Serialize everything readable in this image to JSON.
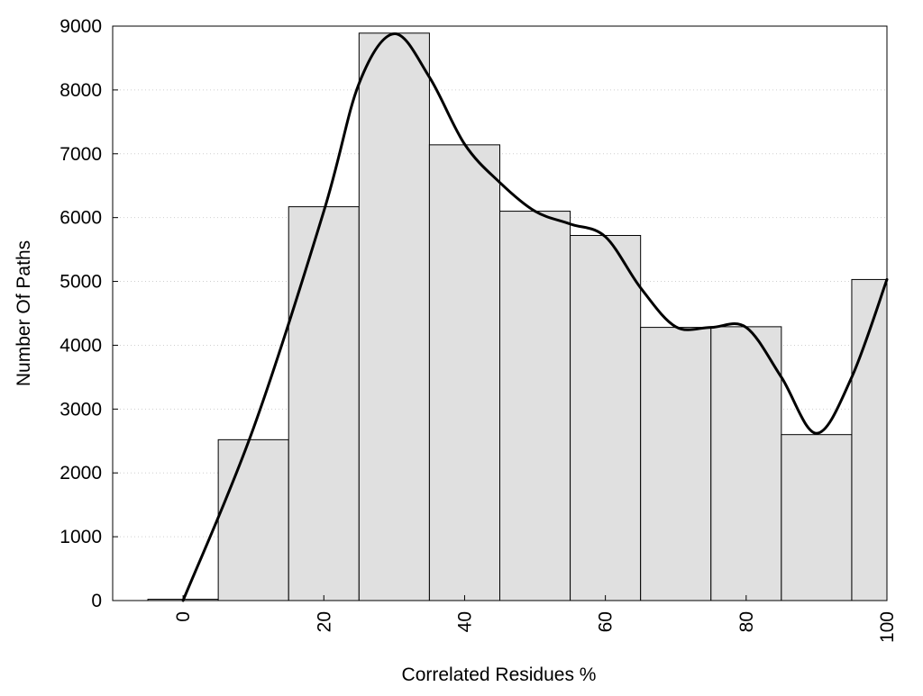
{
  "chart_data": {
    "type": "bar",
    "title": "",
    "xlabel": "Correlated Residues %",
    "ylabel": "Number Of Paths",
    "xlim": [
      -10,
      100
    ],
    "ylim": [
      0,
      9000
    ],
    "grid": {
      "y": true,
      "x": false,
      "style": "dotted"
    },
    "bin_width": 10,
    "bins": [
      {
        "center": 0,
        "value": 20
      },
      {
        "center": 10,
        "value": 2520
      },
      {
        "center": 20,
        "value": 6170
      },
      {
        "center": 30,
        "value": 8890
      },
      {
        "center": 40,
        "value": 7140
      },
      {
        "center": 50,
        "value": 6100
      },
      {
        "center": 60,
        "value": 5720
      },
      {
        "center": 70,
        "value": 4280
      },
      {
        "center": 80,
        "value": 4290
      },
      {
        "center": 90,
        "value": 2600
      },
      {
        "center": 100,
        "value": 5030
      }
    ],
    "smooth_curve": {
      "x": [
        0,
        10,
        20,
        25,
        30,
        35,
        40,
        45,
        50,
        55,
        60,
        65,
        70,
        75,
        80,
        85,
        90,
        95,
        100
      ],
      "y": [
        0,
        2700,
        6100,
        8100,
        8880,
        8200,
        7150,
        6550,
        6100,
        5900,
        5700,
        4900,
        4290,
        4280,
        4280,
        3500,
        2620,
        3500,
        5030
      ]
    },
    "x_ticks": [
      "0",
      "20",
      "40",
      "60",
      "80",
      "100"
    ],
    "x_tick_values": [
      0,
      20,
      40,
      60,
      80,
      100
    ],
    "y_ticks": [
      "0",
      "1000",
      "2000",
      "3000",
      "4000",
      "5000",
      "6000",
      "7000",
      "8000",
      "9000"
    ],
    "y_tick_values": [
      0,
      1000,
      2000,
      3000,
      4000,
      5000,
      6000,
      7000,
      8000,
      9000
    ],
    "colors": {
      "bar_fill": "#e0e0e0",
      "bar_stroke": "#000000",
      "curve": "#000000",
      "grid": "#cfcfcf"
    }
  }
}
